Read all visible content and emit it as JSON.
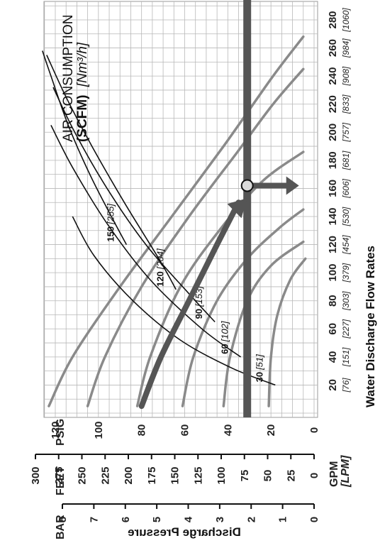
{
  "chart_data": {
    "type": "line",
    "title_line1": "AIR CONSUMPTION",
    "title_line2_bold": "(SCFM)",
    "title_line2_rest": "[Nm³/h]",
    "xlabel": "Water Discharge Flow Rates",
    "x_unit_primary": "GPM",
    "x_unit_secondary": "[LPM]",
    "xlim": [
      0,
      290
    ],
    "x_ticks": [
      20,
      40,
      60,
      80,
      100,
      120,
      140,
      160,
      180,
      200,
      220,
      240,
      260,
      280
    ],
    "x_ticks_lpm": [
      "[76]",
      "[151]",
      "[227]",
      "[303]",
      "[379]",
      "[454]",
      "[530]",
      "[606]",
      "[681]",
      "[757]",
      "[833]",
      "[908]",
      "[984]",
      "[1060]"
    ],
    "ylabel": "Discharge Pressure",
    "ylim": [
      0,
      130
    ],
    "y_unit_psig": "PSIG",
    "y_ticks_psig": [
      0,
      20,
      40,
      60,
      80,
      100,
      120
    ],
    "y_unit_feet": "FEET",
    "y_ticks_feet": [
      0,
      25,
      50,
      75,
      100,
      125,
      150,
      175,
      200,
      225,
      250,
      275,
      300
    ],
    "y_unit_bar": "BAR",
    "y_ticks_bar": [
      0,
      1,
      2,
      3,
      4,
      5,
      6,
      7,
      8
    ],
    "grid": true,
    "pressure_curves": [
      {
        "points": [
          [
            5,
            123
          ],
          [
            40,
            112
          ],
          [
            90,
            90
          ],
          [
            140,
            66
          ],
          [
            190,
            42
          ],
          [
            240,
            19
          ],
          [
            268,
            5
          ]
        ]
      },
      {
        "points": [
          [
            5,
            105
          ],
          [
            40,
            97
          ],
          [
            90,
            80
          ],
          [
            140,
            58
          ],
          [
            185,
            36
          ],
          [
            220,
            19
          ],
          [
            245,
            5
          ]
        ]
      },
      {
        "points": [
          [
            5,
            82
          ],
          [
            40,
            76
          ],
          [
            90,
            62
          ],
          [
            130,
            44
          ],
          [
            165,
            24
          ],
          [
            186,
            5
          ]
        ]
      },
      {
        "points": [
          [
            5,
            61
          ],
          [
            40,
            56
          ],
          [
            80,
            45
          ],
          [
            110,
            31
          ],
          [
            132,
            16
          ],
          [
            145,
            5
          ]
        ]
      },
      {
        "points": [
          [
            5,
            42
          ],
          [
            40,
            39
          ],
          [
            80,
            31
          ],
          [
            105,
            20
          ],
          [
            122,
            5
          ]
        ]
      },
      {
        "points": [
          [
            5,
            21
          ],
          [
            40,
            20
          ],
          [
            70,
            17
          ],
          [
            95,
            11
          ],
          [
            110,
            4
          ]
        ]
      }
    ],
    "air_curves": [
      {
        "label": "30",
        "label_nm": "[51]",
        "points": [
          [
            20,
            18
          ],
          [
            32,
            38
          ],
          [
            52,
            62
          ],
          [
            80,
            84
          ],
          [
            112,
            102
          ],
          [
            140,
            112
          ]
        ]
      },
      {
        "label": "60",
        "label_nm": "[102]",
        "points": [
          [
            40,
            34
          ],
          [
            60,
            52
          ],
          [
            95,
            76
          ],
          [
            135,
            96
          ],
          [
            175,
            112
          ],
          [
            205,
            122
          ]
        ]
      },
      {
        "label": "90",
        "label_nm": "[153]",
        "points": [
          [
            65,
            46
          ],
          [
            85,
            58
          ],
          [
            120,
            78
          ],
          [
            160,
            96
          ],
          [
            200,
            111
          ],
          [
            232,
            121
          ]
        ]
      },
      {
        "label": "120",
        "label_nm": "[204]",
        "points": [
          [
            88,
            64
          ],
          [
            110,
            72
          ],
          [
            150,
            88
          ],
          [
            190,
            103
          ],
          [
            225,
            115
          ],
          [
            255,
            124
          ]
        ]
      },
      {
        "label": "150",
        "label_nm": "[255]",
        "points": [
          [
            120,
            87
          ],
          [
            140,
            94
          ],
          [
            170,
            104
          ],
          [
            205,
            114
          ],
          [
            240,
            122
          ],
          [
            258,
            126
          ]
        ]
      }
    ],
    "example": {
      "pressure_psig": 31,
      "operating_point": [
        162,
        31
      ],
      "path_points": [
        [
          5,
          80
        ],
        [
          40,
          71
        ],
        [
          80,
          58
        ],
        [
          120,
          45
        ],
        [
          150,
          35
        ]
      ],
      "flow_arrow_to": [
        162,
        7
      ]
    }
  }
}
